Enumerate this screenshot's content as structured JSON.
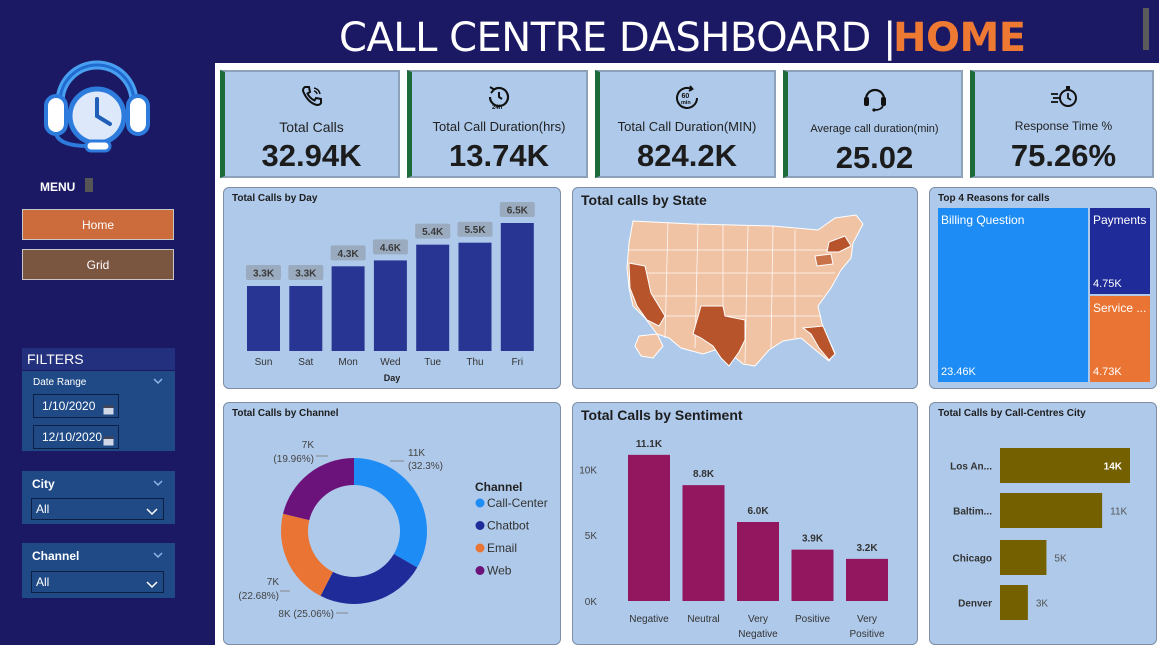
{
  "header": {
    "title_main": "CALL CENTRE DASHBOARD |",
    "title_accent": "HOME"
  },
  "sidebar": {
    "logo_icon": "headset-clock-icon",
    "menu_label": "MENU",
    "nav": [
      {
        "label": "Home",
        "color": "#cc6b3c"
      },
      {
        "label": "Grid",
        "color": "#7a5540"
      }
    ],
    "filters_label": "FILTERS",
    "date_range": {
      "label": "Date Range",
      "start": "1/10/2020",
      "end": "12/10/2020"
    },
    "city": {
      "label": "City",
      "value": "All"
    },
    "channel": {
      "label": "Channel",
      "value": "All"
    }
  },
  "kpis": [
    {
      "icon": "phone-icon",
      "label": "Total Calls",
      "value": "32.94K"
    },
    {
      "icon": "24h-clock-icon",
      "label": "Total Call Duration(hrs)",
      "value": "13.74K"
    },
    {
      "icon": "60min-timer-icon",
      "label": "Total Call Duration(MIN)",
      "value": "824.2K"
    },
    {
      "icon": "headset-icon",
      "label": "Average call duration(min)",
      "value": "25.02"
    },
    {
      "icon": "fast-timer-icon",
      "label": "Response Time %",
      "value": "75.26%"
    }
  ],
  "panels": {
    "by_day": "Total Calls by Day",
    "by_state": "Total calls by State",
    "reasons": "Top 4 Reasons for calls",
    "by_channel": "Total Calls by Channel",
    "by_sentiment": "Total Calls by Sentiment",
    "by_city": "Total Calls by Call-Centres City"
  },
  "chart_data": [
    {
      "type": "bar",
      "title": "Total Calls by Day",
      "xlabel": "Day",
      "categories": [
        "Sun",
        "Sat",
        "Mon",
        "Wed",
        "Tue",
        "Thu",
        "Fri"
      ],
      "values": [
        3300,
        3300,
        4300,
        4600,
        5400,
        5500,
        6500
      ],
      "data_labels": [
        "3.3K",
        "3.3K",
        "4.3K",
        "4.6K",
        "5.4K",
        "5.5K",
        "6.5K"
      ],
      "color": "#283593"
    },
    {
      "type": "map",
      "title": "Total calls by State",
      "highlighted_states": [
        "CA",
        "TX",
        "FL",
        "NY",
        "PA"
      ],
      "base_color": "#f0c3a4",
      "highlight_color": "#b8542c"
    },
    {
      "type": "treemap",
      "title": "Top 4 Reasons for calls",
      "items": [
        {
          "name": "Billing Question",
          "value_label": "23.46K",
          "color": "#1e8cf5"
        },
        {
          "name": "Payments",
          "value_label": "4.75K",
          "color": "#1f2b99"
        },
        {
          "name": "Service ...",
          "value_label": "4.73K",
          "color": "#ea7434"
        }
      ]
    },
    {
      "type": "pie",
      "title": "Total Calls by Channel",
      "legend_title": "Channel",
      "series": [
        {
          "name": "Call-Center",
          "value": 11000,
          "label": "11K",
          "pct": "(32.3%)",
          "color": "#1e8cf5"
        },
        {
          "name": "Chatbot",
          "value": 8000,
          "label": "8K (25.06%)",
          "pct": "",
          "color": "#1f2b99"
        },
        {
          "name": "Email",
          "value": 7000,
          "label": "7K",
          "pct": "(22.68%)",
          "color": "#ea7434"
        },
        {
          "name": "Web",
          "value": 7000,
          "label": "7K",
          "pct": "(19.96%)",
          "color": "#6c137b"
        }
      ]
    },
    {
      "type": "bar",
      "title": "Total Calls by Sentiment",
      "categories": [
        "Negative",
        "Neutral",
        "Very Negative",
        "Positive",
        "Very Positive"
      ],
      "values": [
        11100,
        8800,
        6000,
        3900,
        3200
      ],
      "data_labels": [
        "11.1K",
        "8.8K",
        "6.0K",
        "3.9K",
        "3.2K"
      ],
      "ylim": [
        0,
        12000
      ],
      "yticks": [
        "0K",
        "5K",
        "10K"
      ],
      "color": "#92175f"
    },
    {
      "type": "bar",
      "orientation": "horizontal",
      "title": "Total Calls by Call-Centres City",
      "categories": [
        "Los An...",
        "Baltim...",
        "Chicago",
        "Denver"
      ],
      "values": [
        14000,
        11000,
        5000,
        3000
      ],
      "data_labels": [
        "14K",
        "11K",
        "5K",
        "3K"
      ],
      "color": "#756000"
    }
  ]
}
